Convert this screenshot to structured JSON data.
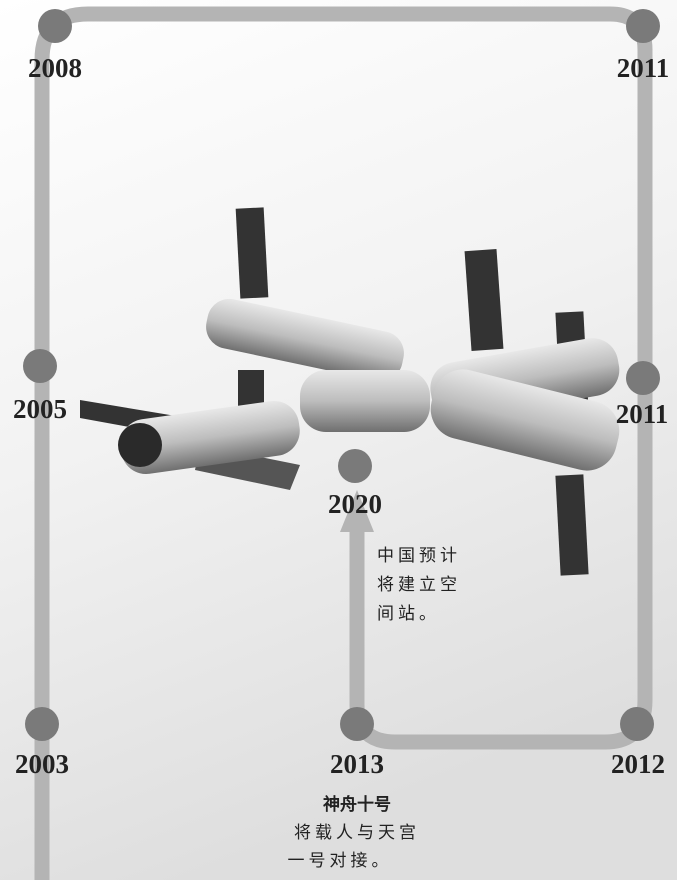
{
  "nodes": [
    {
      "label": "2008"
    },
    {
      "label": "2011"
    },
    {
      "label": "2005"
    },
    {
      "label": "2011"
    },
    {
      "label": "2003"
    },
    {
      "label": "2013"
    },
    {
      "label": "2012"
    },
    {
      "label": "2020"
    }
  ],
  "notes": {
    "station": {
      "lines": [
        "中国预计",
        "将建立空",
        "间站。"
      ]
    },
    "shenzhou": {
      "title": "神舟十号",
      "lines": [
        "将载人与天宫",
        "一号对接。"
      ]
    }
  }
}
